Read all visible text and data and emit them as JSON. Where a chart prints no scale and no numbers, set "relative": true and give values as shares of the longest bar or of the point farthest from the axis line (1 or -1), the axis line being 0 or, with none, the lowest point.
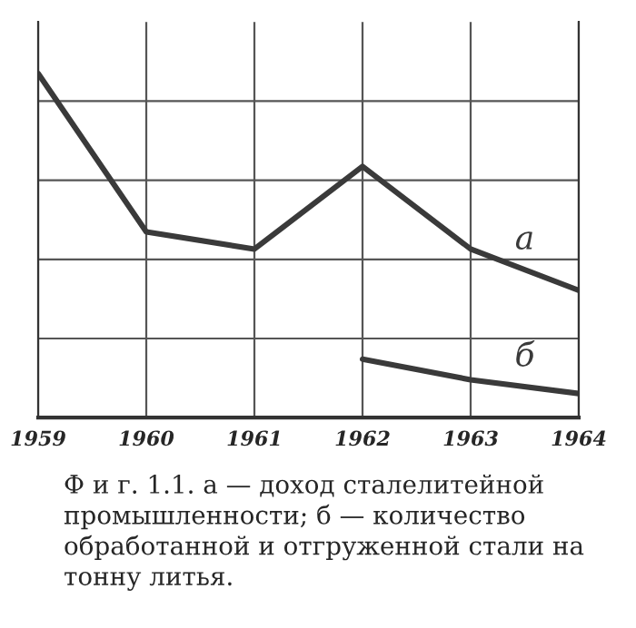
{
  "chart_data": {
    "type": "line",
    "relative": true,
    "categories": [
      "1959",
      "1960",
      "1961",
      "1962",
      "1963",
      "1964"
    ],
    "series": [
      {
        "name": "а",
        "color": "#3a3a3a",
        "values": [
          1.0,
          0.54,
          0.49,
          0.73,
          0.49,
          0.37
        ]
      },
      {
        "name": "б",
        "color": "#3a3a3a",
        "values": [
          null,
          null,
          null,
          0.17,
          0.11,
          0.07
        ]
      }
    ],
    "grid": true,
    "legend": false,
    "marker": "none",
    "line_style": "solid",
    "annotations": [
      "Ф и г. 1.1. а — доход сталелитейной промышленности; б — количество обработанной и отгруженной стали на тонну литья."
    ]
  }
}
